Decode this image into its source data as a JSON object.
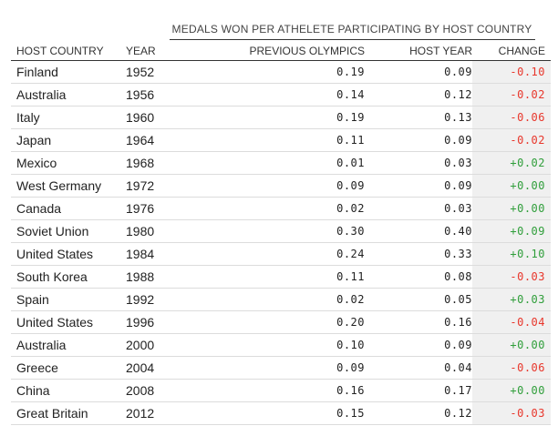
{
  "chart_data": {
    "type": "table",
    "title": "MEDALS WON PER ATHELETE PARTICIPATING BY HOST COUNTRY",
    "columns": [
      "HOST COUNTRY",
      "YEAR",
      "PREVIOUS OLYMPICS",
      "HOST YEAR",
      "CHANGE"
    ],
    "rows": [
      {
        "country": "Finland",
        "year": "1952",
        "previous": "0.19",
        "host": "0.09",
        "change": "-0.10"
      },
      {
        "country": "Australia",
        "year": "1956",
        "previous": "0.14",
        "host": "0.12",
        "change": "-0.02"
      },
      {
        "country": "Italy",
        "year": "1960",
        "previous": "0.19",
        "host": "0.13",
        "change": "-0.06"
      },
      {
        "country": "Japan",
        "year": "1964",
        "previous": "0.11",
        "host": "0.09",
        "change": "-0.02"
      },
      {
        "country": "Mexico",
        "year": "1968",
        "previous": "0.01",
        "host": "0.03",
        "change": "+0.02"
      },
      {
        "country": "West Germany",
        "year": "1972",
        "previous": "0.09",
        "host": "0.09",
        "change": "+0.00"
      },
      {
        "country": "Canada",
        "year": "1976",
        "previous": "0.02",
        "host": "0.03",
        "change": "+0.00"
      },
      {
        "country": "Soviet Union",
        "year": "1980",
        "previous": "0.30",
        "host": "0.40",
        "change": "+0.09"
      },
      {
        "country": "United States",
        "year": "1984",
        "previous": "0.24",
        "host": "0.33",
        "change": "+0.10"
      },
      {
        "country": "South Korea",
        "year": "1988",
        "previous": "0.11",
        "host": "0.08",
        "change": "-0.03"
      },
      {
        "country": "Spain",
        "year": "1992",
        "previous": "0.02",
        "host": "0.05",
        "change": "+0.03"
      },
      {
        "country": "United States",
        "year": "1996",
        "previous": "0.20",
        "host": "0.16",
        "change": "-0.04"
      },
      {
        "country": "Australia",
        "year": "2000",
        "previous": "0.10",
        "host": "0.09",
        "change": "+0.00"
      },
      {
        "country": "Greece",
        "year": "2004",
        "previous": "0.09",
        "host": "0.04",
        "change": "-0.06"
      },
      {
        "country": "China",
        "year": "2008",
        "previous": "0.16",
        "host": "0.17",
        "change": "+0.00"
      },
      {
        "country": "Great Britain",
        "year": "2012",
        "previous": "0.15",
        "host": "0.12",
        "change": "-0.03"
      }
    ],
    "colors": {
      "negative": "#e8362b",
      "positive": "#2f9e3a",
      "change_column_bg": "#f0f0f0"
    }
  }
}
